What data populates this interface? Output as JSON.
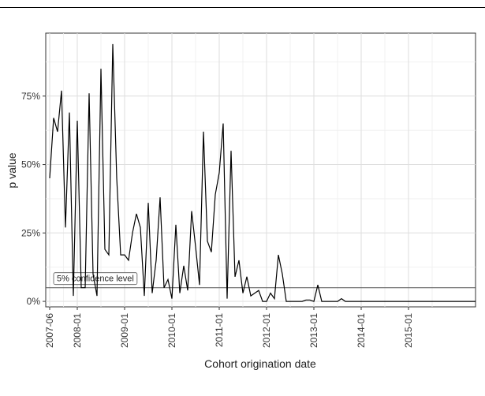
{
  "chart_data": {
    "type": "line",
    "xlabel": "Cohort origination date",
    "ylabel": "p value",
    "x_ticks": [
      "2007-06",
      "2008-01",
      "2009-01",
      "2010-01",
      "2011-01",
      "2012-01",
      "2013-01",
      "2014-01",
      "2015-01"
    ],
    "y_ticks": [
      0,
      25,
      50,
      75
    ],
    "y_tick_labels": [
      "0%",
      "25%",
      "50%",
      "75%"
    ],
    "ylim": [
      -2,
      98
    ],
    "xlim": [
      "2007-05",
      "2016-06"
    ],
    "grid": true,
    "reference_line": {
      "y": 5,
      "label": "5% confidence level"
    },
    "series": [
      {
        "x": [
          "2007-06",
          "2007-07",
          "2007-08",
          "2007-09",
          "2007-10",
          "2007-11",
          "2007-12",
          "2008-01",
          "2008-02",
          "2008-03",
          "2008-04",
          "2008-05",
          "2008-06",
          "2008-07",
          "2008-08",
          "2008-09",
          "2008-10",
          "2008-11",
          "2008-12",
          "2009-01",
          "2009-02",
          "2009-03",
          "2009-04",
          "2009-05",
          "2009-06",
          "2009-07",
          "2009-08",
          "2009-09",
          "2009-10",
          "2009-11",
          "2009-12",
          "2010-01",
          "2010-02",
          "2010-03",
          "2010-04",
          "2010-05",
          "2010-06",
          "2010-07",
          "2010-08",
          "2010-09",
          "2010-10",
          "2010-11",
          "2010-12",
          "2011-01",
          "2011-02",
          "2011-03",
          "2011-04",
          "2011-05",
          "2011-06",
          "2011-07",
          "2011-08",
          "2011-09",
          "2011-10",
          "2011-11",
          "2011-12",
          "2012-01",
          "2012-02",
          "2012-03",
          "2012-04",
          "2012-05",
          "2012-06",
          "2012-07",
          "2012-08",
          "2012-09",
          "2012-10",
          "2012-11",
          "2012-12",
          "2013-01",
          "2013-02",
          "2013-03",
          "2013-04",
          "2013-05",
          "2013-06",
          "2013-07",
          "2013-08",
          "2013-09",
          "2013-10",
          "2013-11",
          "2013-12",
          "2014-06",
          "2015-06",
          "2016-06"
        ],
        "values": [
          45,
          67,
          62,
          77,
          27,
          69,
          2,
          66,
          5,
          5,
          76,
          10,
          2,
          85,
          19,
          17,
          94,
          45,
          17,
          17,
          15,
          25,
          32,
          27,
          2,
          36,
          3,
          15,
          38,
          5,
          8,
          1,
          28,
          3,
          13,
          4,
          33,
          20,
          6,
          62,
          22,
          18,
          39,
          47,
          65,
          1,
          55,
          9,
          15,
          3,
          9,
          2,
          3,
          4,
          0,
          0,
          3,
          1,
          17,
          10,
          0,
          0,
          0,
          0,
          0,
          0.5,
          0.5,
          0,
          6,
          0,
          0,
          0,
          0,
          0,
          1,
          0,
          0,
          0,
          0,
          0,
          0,
          0
        ]
      }
    ]
  }
}
